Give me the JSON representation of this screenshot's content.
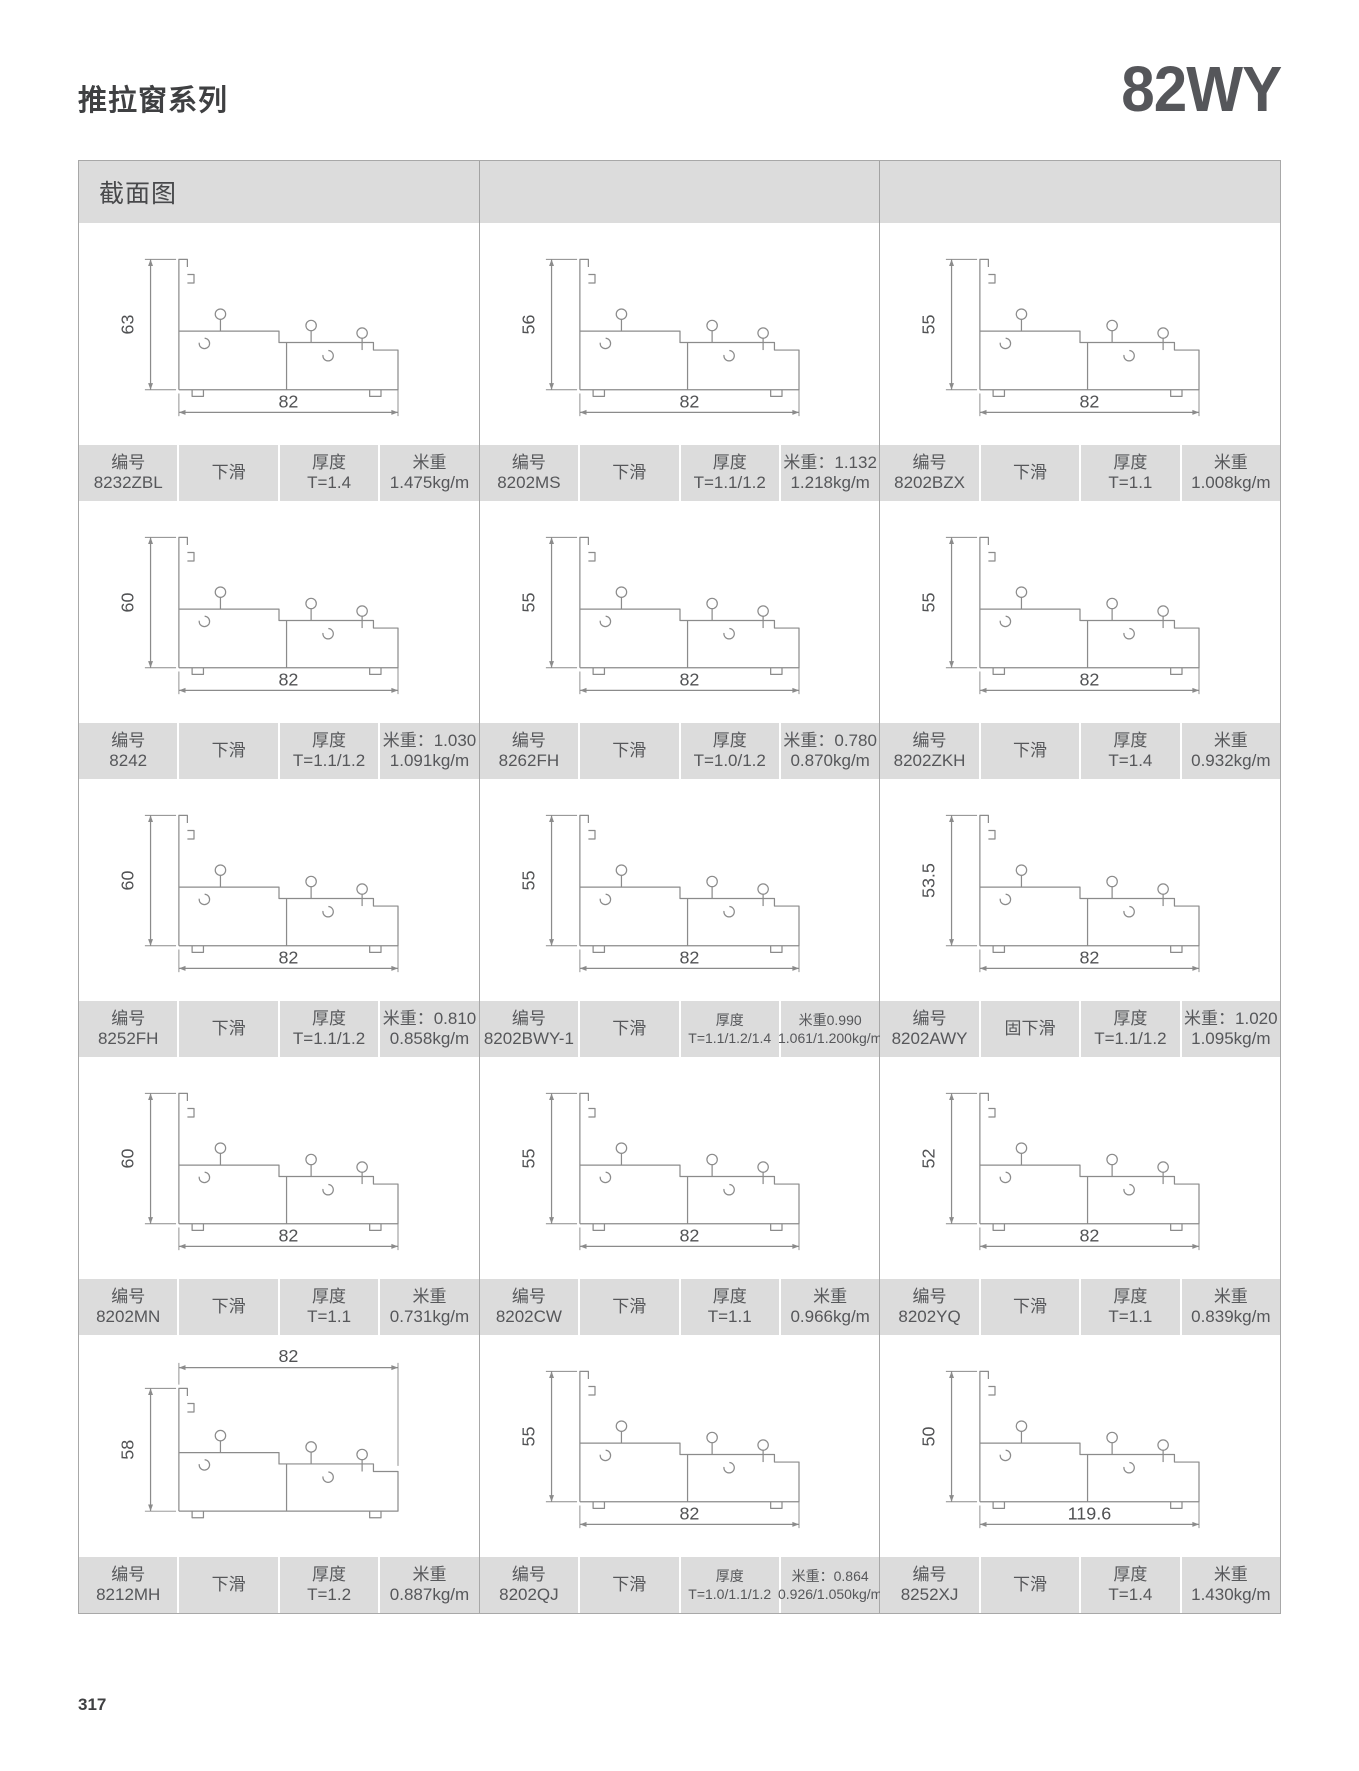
{
  "page": {
    "series_title": "推拉窗系列",
    "model": "82WY",
    "section_header": "截面图",
    "page_number": "317"
  },
  "labels": {
    "code": "编号",
    "thickness": "厚度"
  },
  "colors": {
    "strip_bg": "#dcdcdc",
    "line_gray": "#8b8b8b",
    "text_gray": "#515254"
  },
  "grid": {
    "columns": 3,
    "cells": [
      {
        "code": "8232ZBL",
        "slide": "下滑",
        "thickness": "T=1.4",
        "weight_line1": "米重",
        "weight_line2": "1.475kg/m",
        "dim_h": "63",
        "dim_w": "82",
        "dim_w_pos": "bottom"
      },
      {
        "code": "8202MS",
        "slide": "下滑",
        "thickness": "T=1.1/1.2",
        "weight_line1": "米重：1.132",
        "weight_line2": "1.218kg/m",
        "dim_h": "56",
        "dim_w": "82",
        "dim_w_pos": "bottom"
      },
      {
        "code": "8202BZX",
        "slide": "下滑",
        "thickness": "T=1.1",
        "weight_line1": "米重",
        "weight_line2": "1.008kg/m",
        "dim_h": "55",
        "dim_w": "82",
        "dim_w_pos": "bottom"
      },
      {
        "code": "8242",
        "slide": "下滑",
        "thickness": "T=1.1/1.2",
        "weight_line1": "米重：1.030",
        "weight_line2": "1.091kg/m",
        "dim_h": "60",
        "dim_w": "82",
        "dim_w_pos": "bottom"
      },
      {
        "code": "8262FH",
        "slide": "下滑",
        "thickness": "T=1.0/1.2",
        "weight_line1": "米重：0.780",
        "weight_line2": "0.870kg/m",
        "dim_h": "55",
        "dim_w": "82",
        "dim_w_pos": "bottom"
      },
      {
        "code": "8202ZKH",
        "slide": "下滑",
        "thickness": "T=1.4",
        "weight_line1": "米重",
        "weight_line2": "0.932kg/m",
        "dim_h": "55",
        "dim_w": "82",
        "dim_w_pos": "bottom"
      },
      {
        "code": "8252FH",
        "slide": "下滑",
        "thickness": "T=1.1/1.2",
        "weight_line1": "米重：0.810",
        "weight_line2": "0.858kg/m",
        "dim_h": "60",
        "dim_w": "82",
        "dim_w_pos": "bottom"
      },
      {
        "code": "8202BWY-1",
        "slide": "下滑",
        "thickness": "T=1.1/1.2/1.4",
        "weight_line1": "米重0.990",
        "weight_line2": "1.061/1.200kg/m",
        "dim_h": "55",
        "dim_w": "82",
        "dim_w_pos": "bottom"
      },
      {
        "code": "8202AWY",
        "slide": "固下滑",
        "thickness": "T=1.1/1.2",
        "weight_line1": "米重：1.020",
        "weight_line2": "1.095kg/m",
        "dim_h": "53.5",
        "dim_w": "82",
        "dim_w_pos": "bottom"
      },
      {
        "code": "8202MN",
        "slide": "下滑",
        "thickness": "T=1.1",
        "weight_line1": "米重",
        "weight_line2": "0.731kg/m",
        "dim_h": "60",
        "dim_w": "82",
        "dim_w_pos": "bottom"
      },
      {
        "code": "8202CW",
        "slide": "下滑",
        "thickness": "T=1.1",
        "weight_line1": "米重",
        "weight_line2": "0.966kg/m",
        "dim_h": "55",
        "dim_w": "82",
        "dim_w_pos": "bottom"
      },
      {
        "code": "8202YQ",
        "slide": "下滑",
        "thickness": "T=1.1",
        "weight_line1": "米重",
        "weight_line2": "0.839kg/m",
        "dim_h": "52",
        "dim_w": "82",
        "dim_w_pos": "bottom"
      },
      {
        "code": "8212MH",
        "slide": "下滑",
        "thickness": "T=1.2",
        "weight_line1": "米重",
        "weight_line2": "0.887kg/m",
        "dim_h": "58",
        "dim_w": "82",
        "dim_w_pos": "top"
      },
      {
        "code": "8202QJ",
        "slide": "下滑",
        "thickness": "T=1.0/1.1/1.2",
        "weight_line1": "米重：0.864",
        "weight_line2": "0.926/1.050kg/m",
        "dim_h": "55",
        "dim_w": "82",
        "dim_w_pos": "bottom"
      },
      {
        "code": "8252XJ",
        "slide": "下滑",
        "thickness": "T=1.4",
        "weight_line1": "米重",
        "weight_line2": "1.430kg/m",
        "dim_h": "50",
        "dim_w": "119.6",
        "dim_w_pos": "bottom"
      }
    ]
  }
}
